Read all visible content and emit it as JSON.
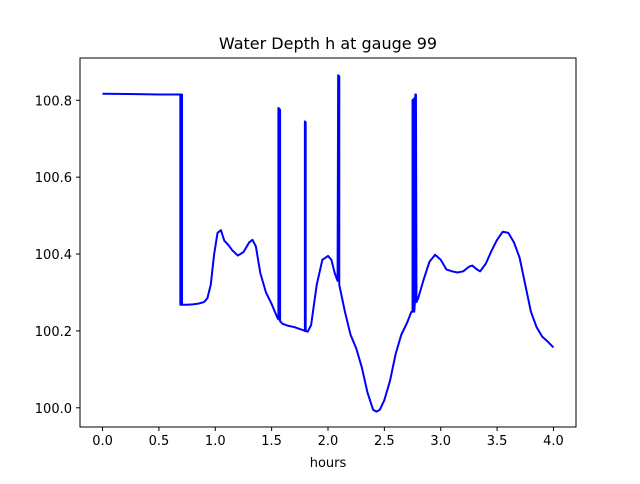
{
  "chart_data": {
    "type": "line",
    "title": "Water Depth h at gauge 99",
    "xlabel": "hours",
    "ylabel": "",
    "xlim": [
      -0.2,
      4.2
    ],
    "ylim": [
      99.95,
      100.91
    ],
    "xticks": [
      0.0,
      0.5,
      1.0,
      1.5,
      2.0,
      2.5,
      3.0,
      3.5,
      4.0
    ],
    "xtick_labels": [
      "0.0",
      "0.5",
      "1.0",
      "1.5",
      "2.0",
      "2.5",
      "3.0",
      "3.5",
      "4.0"
    ],
    "yticks": [
      100.0,
      100.2,
      100.4,
      100.6,
      100.8
    ],
    "ytick_labels": [
      "100.0",
      "100.2",
      "100.4",
      "100.6",
      "100.8"
    ],
    "grid": false,
    "series": [
      {
        "color": "#0000ff",
        "points": [
          [
            0.0,
            100.817
          ],
          [
            0.3,
            100.816
          ],
          [
            0.5,
            100.815
          ],
          [
            0.68,
            100.815
          ],
          [
            0.69,
            100.815
          ],
          [
            0.69,
            100.268
          ],
          [
            0.697,
            100.268
          ],
          [
            0.697,
            100.815
          ],
          [
            0.705,
            100.815
          ],
          [
            0.705,
            100.268
          ],
          [
            0.75,
            100.268
          ],
          [
            0.8,
            100.269
          ],
          [
            0.85,
            100.271
          ],
          [
            0.9,
            100.275
          ],
          [
            0.93,
            100.285
          ],
          [
            0.96,
            100.32
          ],
          [
            0.99,
            100.4
          ],
          [
            1.02,
            100.455
          ],
          [
            1.05,
            100.462
          ],
          [
            1.08,
            100.435
          ],
          [
            1.12,
            100.422
          ],
          [
            1.15,
            100.41
          ],
          [
            1.2,
            100.396
          ],
          [
            1.25,
            100.405
          ],
          [
            1.3,
            100.43
          ],
          [
            1.33,
            100.437
          ],
          [
            1.36,
            100.42
          ],
          [
            1.4,
            100.35
          ],
          [
            1.45,
            100.3
          ],
          [
            1.5,
            100.27
          ],
          [
            1.55,
            100.235
          ],
          [
            1.56,
            100.23
          ],
          [
            1.56,
            100.78
          ],
          [
            1.575,
            100.775
          ],
          [
            1.575,
            100.225
          ],
          [
            1.6,
            100.218
          ],
          [
            1.65,
            100.213
          ],
          [
            1.7,
            100.21
          ],
          [
            1.78,
            100.202
          ],
          [
            1.795,
            100.2
          ],
          [
            1.795,
            100.745
          ],
          [
            1.802,
            100.743
          ],
          [
            1.802,
            100.2
          ],
          [
            1.82,
            100.198
          ],
          [
            1.85,
            100.215
          ],
          [
            1.9,
            100.32
          ],
          [
            1.95,
            100.385
          ],
          [
            2.0,
            100.395
          ],
          [
            2.03,
            100.385
          ],
          [
            2.06,
            100.35
          ],
          [
            2.085,
            100.33
          ],
          [
            2.09,
            100.865
          ],
          [
            2.1,
            100.862
          ],
          [
            2.1,
            100.32
          ],
          [
            2.15,
            100.25
          ],
          [
            2.2,
            100.19
          ],
          [
            2.25,
            100.155
          ],
          [
            2.3,
            100.105
          ],
          [
            2.35,
            100.04
          ],
          [
            2.4,
            99.995
          ],
          [
            2.43,
            99.99
          ],
          [
            2.46,
            99.995
          ],
          [
            2.5,
            100.02
          ],
          [
            2.55,
            100.07
          ],
          [
            2.6,
            100.14
          ],
          [
            2.65,
            100.19
          ],
          [
            2.7,
            100.22
          ],
          [
            2.74,
            100.25
          ],
          [
            2.75,
            100.25
          ],
          [
            2.75,
            100.8
          ],
          [
            2.765,
            100.805
          ],
          [
            2.765,
            100.25
          ],
          [
            2.77,
            100.27
          ],
          [
            2.775,
            100.815
          ],
          [
            2.78,
            100.815
          ],
          [
            2.785,
            100.275
          ],
          [
            2.8,
            100.285
          ],
          [
            2.85,
            100.335
          ],
          [
            2.9,
            100.38
          ],
          [
            2.95,
            100.398
          ],
          [
            3.0,
            100.385
          ],
          [
            3.05,
            100.36
          ],
          [
            3.1,
            100.355
          ],
          [
            3.15,
            100.352
          ],
          [
            3.2,
            100.355
          ],
          [
            3.25,
            100.367
          ],
          [
            3.28,
            100.37
          ],
          [
            3.32,
            100.36
          ],
          [
            3.35,
            100.355
          ],
          [
            3.4,
            100.375
          ],
          [
            3.45,
            100.408
          ],
          [
            3.5,
            100.437
          ],
          [
            3.55,
            100.458
          ],
          [
            3.6,
            100.455
          ],
          [
            3.65,
            100.43
          ],
          [
            3.7,
            100.39
          ],
          [
            3.75,
            100.32
          ],
          [
            3.8,
            100.25
          ],
          [
            3.85,
            100.21
          ],
          [
            3.9,
            100.185
          ],
          [
            3.95,
            100.172
          ],
          [
            4.0,
            100.157
          ]
        ]
      }
    ]
  }
}
